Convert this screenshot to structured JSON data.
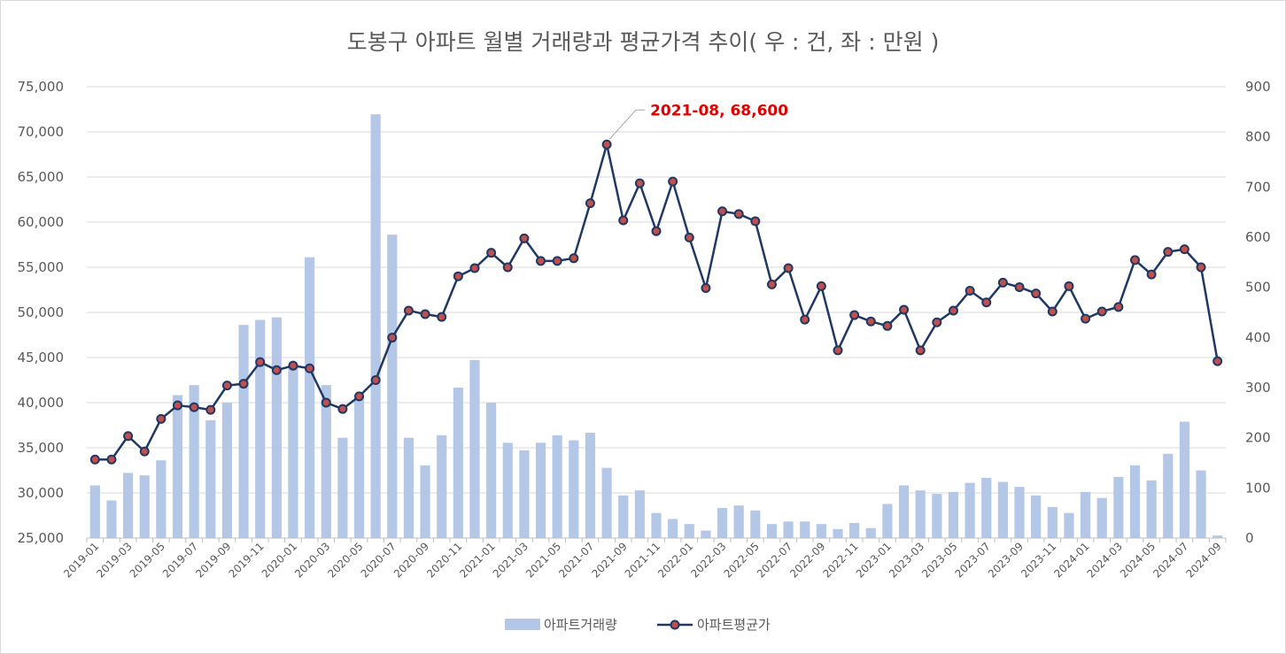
{
  "chart_data": {
    "type": "bar+line",
    "title": "도봉구 아파트 월별 거래량과 평균가격 추이( 우 : 건, 좌 : 만원 )",
    "categories": [
      "2019-01",
      "2019-02",
      "2019-03",
      "2019-04",
      "2019-05",
      "2019-06",
      "2019-07",
      "2019-08",
      "2019-09",
      "2019-10",
      "2019-11",
      "2019-12",
      "2020-01",
      "2020-02",
      "2020-03",
      "2020-04",
      "2020-05",
      "2020-06",
      "2020-07",
      "2020-08",
      "2020-09",
      "2020-10",
      "2020-11",
      "2020-12",
      "2021-01",
      "2021-02",
      "2021-03",
      "2021-04",
      "2021-05",
      "2021-06",
      "2021-07",
      "2021-08",
      "2021-09",
      "2021-10",
      "2021-11",
      "2021-12",
      "2022-01",
      "2022-02",
      "2022-03",
      "2022-04",
      "2022-05",
      "2022-06",
      "2022-07",
      "2022-08",
      "2022-09",
      "2022-10",
      "2022-11",
      "2022-12",
      "2023-01",
      "2023-02",
      "2023-03",
      "2023-04",
      "2023-05",
      "2023-06",
      "2023-07",
      "2023-08",
      "2023-09",
      "2023-10",
      "2023-11",
      "2023-12",
      "2024-01",
      "2024-02",
      "2024-03",
      "2024-04",
      "2024-05",
      "2024-06",
      "2024-07",
      "2024-08",
      "2024-09"
    ],
    "x_tick_labels": [
      "2019-01",
      "2019-03",
      "2019-05",
      "2019-07",
      "2019-09",
      "2019-11",
      "2020-01",
      "2020-03",
      "2020-05",
      "2020-07",
      "2020-09",
      "2020-11",
      "2021-01",
      "2021-03",
      "2021-05",
      "2021-07",
      "2021-09",
      "2021-11",
      "2022-01",
      "2022-03",
      "2022-05",
      "2022-07",
      "2022-09",
      "2022-11",
      "2023-01",
      "2023-03",
      "2023-05",
      "2023-07",
      "2023-09",
      "2023-11",
      "2024-01",
      "2024-03",
      "2024-05",
      "2024-07",
      "2024-09"
    ],
    "left_axis": {
      "min": 25000,
      "max": 75000,
      "step": 5000,
      "ticks": [
        "25,000",
        "30,000",
        "35,000",
        "40,000",
        "45,000",
        "50,000",
        "55,000",
        "60,000",
        "65,000",
        "70,000",
        "75,000"
      ]
    },
    "right_axis": {
      "min": 0,
      "max": 900,
      "step": 100,
      "ticks": [
        "0",
        "100",
        "200",
        "300",
        "400",
        "500",
        "600",
        "700",
        "800",
        "900"
      ]
    },
    "series": [
      {
        "name": "아파트거래량",
        "type": "bar",
        "axis": "right",
        "color": "#b4c7e7",
        "values": [
          105,
          75,
          130,
          125,
          155,
          285,
          305,
          235,
          270,
          425,
          435,
          440,
          345,
          560,
          305,
          200,
          280,
          845,
          605,
          200,
          145,
          205,
          300,
          355,
          270,
          190,
          175,
          190,
          205,
          195,
          210,
          140,
          85,
          95,
          50,
          38,
          28,
          15,
          60,
          65,
          55,
          28,
          33,
          33,
          28,
          18,
          30,
          20,
          68,
          105,
          95,
          88,
          92,
          110,
          120,
          112,
          102,
          85,
          62,
          50,
          92,
          80,
          122,
          145,
          115,
          168,
          232,
          135,
          5
        ]
      },
      {
        "name": "아파트평균가",
        "type": "line",
        "axis": "left",
        "color": "#1f3864",
        "marker_color": "#c0504d",
        "values": [
          33700,
          33700,
          36300,
          34600,
          38200,
          39700,
          39500,
          39200,
          41900,
          42100,
          44500,
          43600,
          44100,
          43800,
          40000,
          39300,
          40700,
          42500,
          47200,
          50200,
          49800,
          49500,
          54000,
          54900,
          56600,
          55000,
          58200,
          55700,
          55700,
          56000,
          62100,
          68600,
          60200,
          64300,
          59000,
          64500,
          58300,
          52700,
          61200,
          60900,
          60100,
          53100,
          54900,
          49200,
          52900,
          45800,
          49700,
          49000,
          48500,
          50300,
          45800,
          48900,
          50200,
          52400,
          51100,
          53300,
          52800,
          52100,
          50100,
          52900,
          49300,
          50100,
          50600,
          55800,
          54200,
          56700,
          57000,
          55000,
          44600
        ]
      }
    ],
    "annotation": {
      "label": "2021-08, 68,600",
      "category": "2021-08",
      "value": 68600
    },
    "legend": {
      "placement": "bottom",
      "items": [
        "아파트거래량",
        "아파트평균가"
      ]
    },
    "grid": true
  }
}
